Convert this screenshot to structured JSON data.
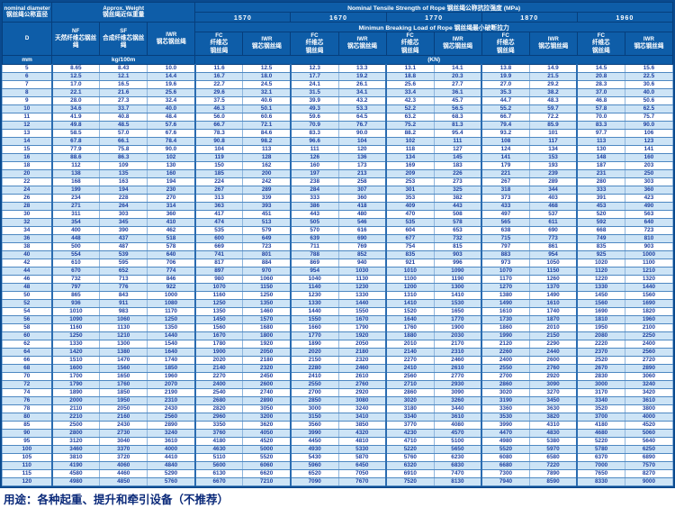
{
  "header": {
    "nominal_diameter_en": "nominal diameter",
    "nominal_diameter_zh": "钢丝绳公称直径",
    "d_symbol": "D",
    "unit_mm": "mm",
    "approx_weight_en": "Approx. Weight",
    "approx_weight_zh": "钢丝绳近似重量",
    "weight_unit": "kg/100m",
    "tensile_title_en": "Nominal  Tensile  Strength  of  Rope",
    "tensile_title_zh": "钢丝绳公称抗拉强度",
    "tensile_unit": "(MPa)",
    "strengths": [
      "1570",
      "1670",
      "1770",
      "1870",
      "1960"
    ],
    "breaking_title_en": "Minimun  Breaking  Load  of  Rope",
    "breaking_title_zh": "钢丝绳最小破断拉力",
    "load_unit": "(KN)",
    "nf_label": "NF",
    "nf_zh": "天然纤维芯钢丝绳",
    "sf_label": "SF",
    "sf_zh": "合成纤维芯钢丝绳",
    "iwr_label": "IWR",
    "iwr_zh": "钢芯钢丝绳",
    "fc_label": "FC",
    "fc_zh_line1": "纤维芯",
    "fc_zh_line2": "钢丝绳"
  },
  "rows": [
    [
      "5",
      "8.65",
      "8.43",
      "10.0",
      "11.6",
      "12.5",
      "12.3",
      "13.3",
      "13.1",
      "14.1",
      "13.8",
      "14.9",
      "14.5",
      "15.6"
    ],
    [
      "6",
      "12.5",
      "12.1",
      "14.4",
      "16.7",
      "18.0",
      "17.7",
      "19.2",
      "18.8",
      "20.3",
      "19.9",
      "21.5",
      "20.8",
      "22.5"
    ],
    [
      "7",
      "17.0",
      "16.5",
      "19.6",
      "22.7",
      "24.5",
      "24.1",
      "26.1",
      "25.6",
      "27.7",
      "27.0",
      "29.2",
      "28.3",
      "30.6"
    ],
    [
      "8",
      "22.1",
      "21.6",
      "25.6",
      "29.6",
      "32.1",
      "31.5",
      "34.1",
      "33.4",
      "36.1",
      "35.3",
      "38.2",
      "37.0",
      "40.0"
    ],
    [
      "9",
      "28.0",
      "27.3",
      "32.4",
      "37.5",
      "40.6",
      "39.9",
      "43.2",
      "42.3",
      "45.7",
      "44.7",
      "48.3",
      "46.8",
      "50.6"
    ],
    [
      "10",
      "34.6",
      "33.7",
      "40.0",
      "46.3",
      "50.1",
      "49.3",
      "53.3",
      "52.2",
      "56.5",
      "55.2",
      "59.7",
      "57.8",
      "62.5"
    ],
    [
      "11",
      "41.9",
      "40.8",
      "48.4",
      "56.0",
      "60.6",
      "59.6",
      "64.5",
      "63.2",
      "68.3",
      "66.7",
      "72.2",
      "70.0",
      "75.7"
    ],
    [
      "12",
      "49.8",
      "48.5",
      "57.6",
      "66.7",
      "72.1",
      "70.9",
      "76.7",
      "75.2",
      "81.3",
      "79.4",
      "85.9",
      "83.3",
      "90.0"
    ],
    [
      "13",
      "58.5",
      "57.0",
      "67.6",
      "78.3",
      "84.6",
      "83.3",
      "90.0",
      "88.2",
      "95.4",
      "93.2",
      "101",
      "97.7",
      "106"
    ],
    [
      "14",
      "67.8",
      "66.1",
      "78.4",
      "90.8",
      "98.2",
      "96.6",
      "104",
      "102",
      "111",
      "108",
      "117",
      "113",
      "123"
    ],
    [
      "15",
      "77.9",
      "75.8",
      "90.0",
      "104",
      "113",
      "111",
      "120",
      "118",
      "127",
      "124",
      "134",
      "130",
      "141"
    ],
    [
      "16",
      "88.6",
      "86.3",
      "102",
      "119",
      "128",
      "126",
      "136",
      "134",
      "145",
      "141",
      "153",
      "148",
      "160"
    ],
    [
      "18",
      "112",
      "109",
      "130",
      "150",
      "162",
      "160",
      "173",
      "169",
      "183",
      "179",
      "193",
      "187",
      "203"
    ],
    [
      "20",
      "138",
      "135",
      "160",
      "185",
      "200",
      "197",
      "213",
      "209",
      "226",
      "221",
      "239",
      "231",
      "250"
    ],
    [
      "22",
      "168",
      "163",
      "194",
      "224",
      "242",
      "238",
      "258",
      "253",
      "273",
      "267",
      "289",
      "280",
      "303"
    ],
    [
      "24",
      "199",
      "194",
      "230",
      "267",
      "289",
      "284",
      "307",
      "301",
      "325",
      "318",
      "344",
      "333",
      "360"
    ],
    [
      "26",
      "234",
      "228",
      "270",
      "313",
      "339",
      "333",
      "360",
      "353",
      "382",
      "373",
      "403",
      "391",
      "423"
    ],
    [
      "28",
      "271",
      "264",
      "314",
      "363",
      "393",
      "386",
      "418",
      "409",
      "443",
      "433",
      "468",
      "453",
      "490"
    ],
    [
      "30",
      "311",
      "303",
      "360",
      "417",
      "451",
      "443",
      "480",
      "470",
      "508",
      "497",
      "537",
      "520",
      "563"
    ],
    [
      "32",
      "354",
      "345",
      "410",
      "474",
      "513",
      "505",
      "546",
      "535",
      "578",
      "565",
      "611",
      "592",
      "640"
    ],
    [
      "34",
      "400",
      "390",
      "462",
      "535",
      "579",
      "570",
      "616",
      "604",
      "653",
      "638",
      "690",
      "668",
      "723"
    ],
    [
      "36",
      "448",
      "437",
      "518",
      "600",
      "649",
      "639",
      "690",
      "677",
      "732",
      "715",
      "773",
      "749",
      "810"
    ],
    [
      "38",
      "500",
      "487",
      "578",
      "669",
      "723",
      "711",
      "769",
      "754",
      "815",
      "797",
      "861",
      "835",
      "903"
    ],
    [
      "40",
      "554",
      "539",
      "640",
      "741",
      "801",
      "788",
      "852",
      "835",
      "903",
      "883",
      "954",
      "925",
      "1000"
    ],
    [
      "42",
      "610",
      "595",
      "706",
      "817",
      "884",
      "869",
      "940",
      "921",
      "996",
      "973",
      "1050",
      "1020",
      "1100"
    ],
    [
      "44",
      "670",
      "652",
      "774",
      "897",
      "970",
      "954",
      "1030",
      "1010",
      "1090",
      "1070",
      "1150",
      "1120",
      "1210"
    ],
    [
      "46",
      "732",
      "713",
      "846",
      "980",
      "1060",
      "1040",
      "1130",
      "1100",
      "1190",
      "1170",
      "1260",
      "1220",
      "1320"
    ],
    [
      "48",
      "797",
      "776",
      "922",
      "1070",
      "1150",
      "1140",
      "1230",
      "1200",
      "1300",
      "1270",
      "1370",
      "1330",
      "1440"
    ],
    [
      "50",
      "865",
      "843",
      "1000",
      "1160",
      "1250",
      "1230",
      "1330",
      "1310",
      "1410",
      "1380",
      "1490",
      "1450",
      "1560"
    ],
    [
      "52",
      "936",
      "911",
      "1080",
      "1250",
      "1350",
      "1330",
      "1440",
      "1410",
      "1530",
      "1490",
      "1610",
      "1560",
      "1690"
    ],
    [
      "54",
      "1010",
      "983",
      "1170",
      "1350",
      "1460",
      "1440",
      "1550",
      "1520",
      "1650",
      "1610",
      "1740",
      "1690",
      "1820"
    ],
    [
      "56",
      "1090",
      "1060",
      "1250",
      "1450",
      "1570",
      "1550",
      "1670",
      "1640",
      "1770",
      "1730",
      "1870",
      "1810",
      "1960"
    ],
    [
      "58",
      "1160",
      "1130",
      "1350",
      "1560",
      "1680",
      "1660",
      "1790",
      "1760",
      "1900",
      "1860",
      "2010",
      "1950",
      "2100"
    ],
    [
      "60",
      "1250",
      "1210",
      "1440",
      "1670",
      "1800",
      "1770",
      "1920",
      "1880",
      "2030",
      "1990",
      "2150",
      "2080",
      "2250"
    ],
    [
      "62",
      "1330",
      "1300",
      "1540",
      "1780",
      "1920",
      "1890",
      "2050",
      "2010",
      "2170",
      "2120",
      "2290",
      "2220",
      "2400"
    ],
    [
      "64",
      "1420",
      "1380",
      "1640",
      "1900",
      "2050",
      "2020",
      "2180",
      "2140",
      "2310",
      "2260",
      "2440",
      "2370",
      "2560"
    ],
    [
      "66",
      "1510",
      "1470",
      "1740",
      "2020",
      "2180",
      "2150",
      "2320",
      "2270",
      "2460",
      "2400",
      "2600",
      "2520",
      "2720"
    ],
    [
      "68",
      "1600",
      "1560",
      "1850",
      "2140",
      "2320",
      "2280",
      "2460",
      "2410",
      "2610",
      "2550",
      "2760",
      "2670",
      "2890"
    ],
    [
      "70",
      "1700",
      "1650",
      "1960",
      "2270",
      "2450",
      "2410",
      "2610",
      "2560",
      "2770",
      "2700",
      "2920",
      "2830",
      "3060"
    ],
    [
      "72",
      "1790",
      "1760",
      "2070",
      "2400",
      "2600",
      "2550",
      "2760",
      "2710",
      "2930",
      "2860",
      "3090",
      "3000",
      "3240"
    ],
    [
      "74",
      "1890",
      "1850",
      "2190",
      "2540",
      "2740",
      "2700",
      "2920",
      "2860",
      "3090",
      "3020",
      "3270",
      "3170",
      "3420"
    ],
    [
      "76",
      "2000",
      "1950",
      "2310",
      "2680",
      "2890",
      "2850",
      "3080",
      "3020",
      "3260",
      "3190",
      "3450",
      "3340",
      "3610"
    ],
    [
      "78",
      "2110",
      "2050",
      "2430",
      "2820",
      "3050",
      "3000",
      "3240",
      "3180",
      "3440",
      "3360",
      "3630",
      "3520",
      "3800"
    ],
    [
      "80",
      "2210",
      "2160",
      "2560",
      "2960",
      "3200",
      "3150",
      "3410",
      "3340",
      "3610",
      "3530",
      "3820",
      "3700",
      "4000"
    ],
    [
      "85",
      "2500",
      "2430",
      "2890",
      "3350",
      "3620",
      "3560",
      "3850",
      "3770",
      "4080",
      "3990",
      "4310",
      "4180",
      "4520"
    ],
    [
      "90",
      "2800",
      "2730",
      "3240",
      "3760",
      "4050",
      "3990",
      "4320",
      "4230",
      "4570",
      "4470",
      "4830",
      "4680",
      "5060"
    ],
    [
      "95",
      "3120",
      "3040",
      "3610",
      "4180",
      "4520",
      "4450",
      "4810",
      "4710",
      "5100",
      "4980",
      "5380",
      "5220",
      "5640"
    ],
    [
      "100",
      "3460",
      "3370",
      "4000",
      "4630",
      "5000",
      "4930",
      "5330",
      "5220",
      "5650",
      "5520",
      "5970",
      "5780",
      "6250"
    ],
    [
      "105",
      "3810",
      "3720",
      "4410",
      "5110",
      "5520",
      "5430",
      "5870",
      "5760",
      "6230",
      "6080",
      "6580",
      "6370",
      "6890"
    ],
    [
      "110",
      "4190",
      "4060",
      "4840",
      "5600",
      "6060",
      "5960",
      "6450",
      "6320",
      "6830",
      "6680",
      "7220",
      "7000",
      "7570"
    ],
    [
      "115",
      "4580",
      "4460",
      "5290",
      "6130",
      "6620",
      "6520",
      "7050",
      "6910",
      "7470",
      "7300",
      "7890",
      "7650",
      "8270"
    ],
    [
      "120",
      "4980",
      "4850",
      "5760",
      "6670",
      "7210",
      "7090",
      "7670",
      "7520",
      "8130",
      "7940",
      "8590",
      "8330",
      "9000"
    ]
  ],
  "footer": {
    "usage_text": "用途：各种起重、提升和牵引设备（不推荐）"
  }
}
